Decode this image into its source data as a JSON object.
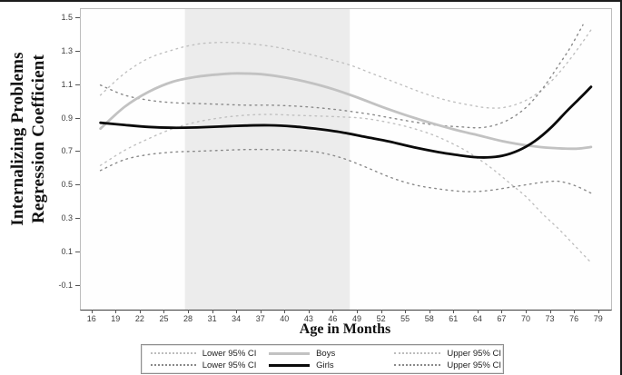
{
  "figure": {
    "y_axis_title_line1": "Internalizing Problems",
    "y_axis_title_line2": "Regression Coefficient",
    "x_axis_title": "Age in Months"
  },
  "chart_data": {
    "type": "line",
    "title": "",
    "xlabel": "Age in Months",
    "ylabel": "Internalizing Problems Regression Coefficient",
    "xlim": [
      14.56,
      80.5
    ],
    "ylim": [
      -0.241,
      1.554
    ],
    "grid": false,
    "x_tick_values": [
      16,
      19,
      22,
      25,
      28,
      31,
      34,
      37,
      40,
      43,
      46,
      49,
      52,
      55,
      58,
      61,
      64,
      67,
      70,
      73,
      76,
      79
    ],
    "x_tick_labels": [
      "16",
      "19",
      "22",
      "25",
      "28",
      "31",
      "34",
      "37",
      "40",
      "43",
      "46",
      "49",
      "52",
      "55",
      "58",
      "61",
      "64",
      "67",
      "70",
      "73",
      "76",
      "79"
    ],
    "y_tick_values": [
      1.5,
      1.3,
      1.1,
      0.9,
      0.7,
      0.5,
      0.3,
      0.1,
      -0.1
    ],
    "y_tick_labels": [
      "1.5",
      "1.3",
      "1.1",
      "0.9",
      "0.7",
      "0.5",
      "0.3",
      "0.1",
      "-0.1"
    ],
    "shaded_region": {
      "x_start": 27.5,
      "x_end": 48.0,
      "color": "#ececec"
    },
    "legend_position": "bottom",
    "series": [
      {
        "name": "boys_lower_ci",
        "label": "Lower 95% CI",
        "group": "Boys",
        "color": "#c0c0c0",
        "style": "dotted",
        "width": 1.4,
        "points": [
          [
            17,
            0.62
          ],
          [
            20,
            0.71
          ],
          [
            23,
            0.78
          ],
          [
            26,
            0.84
          ],
          [
            29,
            0.88
          ],
          [
            32,
            0.905
          ],
          [
            35,
            0.92
          ],
          [
            38,
            0.925
          ],
          [
            41,
            0.92
          ],
          [
            44,
            0.915
          ],
          [
            47,
            0.91
          ],
          [
            50,
            0.9
          ],
          [
            53,
            0.875
          ],
          [
            56,
            0.84
          ],
          [
            59,
            0.79
          ],
          [
            62,
            0.72
          ],
          [
            64,
            0.66
          ],
          [
            66,
            0.59
          ],
          [
            68,
            0.51
          ],
          [
            70,
            0.43
          ],
          [
            72,
            0.33
          ],
          [
            74,
            0.24
          ],
          [
            76,
            0.14
          ],
          [
            78,
            0.04
          ]
        ]
      },
      {
        "name": "girls_lower_ci",
        "label": "Lower 95% CI",
        "group": "Girls",
        "color": "#8a8a8a",
        "style": "dotted",
        "width": 1.4,
        "points": [
          [
            17,
            0.59
          ],
          [
            20,
            0.655
          ],
          [
            23,
            0.685
          ],
          [
            26,
            0.7
          ],
          [
            29,
            0.705
          ],
          [
            32,
            0.71
          ],
          [
            35,
            0.715
          ],
          [
            38,
            0.715
          ],
          [
            41,
            0.71
          ],
          [
            44,
            0.7
          ],
          [
            47,
            0.665
          ],
          [
            50,
            0.61
          ],
          [
            53,
            0.55
          ],
          [
            56,
            0.505
          ],
          [
            59,
            0.48
          ],
          [
            62,
            0.465
          ],
          [
            64,
            0.465
          ],
          [
            66,
            0.475
          ],
          [
            68,
            0.49
          ],
          [
            70,
            0.505
          ],
          [
            72,
            0.52
          ],
          [
            74,
            0.525
          ],
          [
            76,
            0.5
          ],
          [
            78,
            0.455
          ]
        ]
      },
      {
        "name": "boys_upper_ci",
        "label": "Upper 95% CI",
        "group": "Boys",
        "color": "#c0c0c0",
        "style": "dotted",
        "width": 1.4,
        "points": [
          [
            17,
            1.04
          ],
          [
            20,
            1.17
          ],
          [
            23,
            1.26
          ],
          [
            26,
            1.31
          ],
          [
            28,
            1.335
          ],
          [
            30,
            1.35
          ],
          [
            33,
            1.355
          ],
          [
            36,
            1.345
          ],
          [
            39,
            1.325
          ],
          [
            42,
            1.295
          ],
          [
            45,
            1.26
          ],
          [
            48,
            1.22
          ],
          [
            51,
            1.165
          ],
          [
            54,
            1.11
          ],
          [
            57,
            1.055
          ],
          [
            60,
            1.01
          ],
          [
            63,
            0.98
          ],
          [
            65,
            0.965
          ],
          [
            67,
            0.965
          ],
          [
            69,
            0.99
          ],
          [
            71,
            1.04
          ],
          [
            73,
            1.12
          ],
          [
            75,
            1.23
          ],
          [
            77,
            1.36
          ],
          [
            78,
            1.43
          ]
        ]
      },
      {
        "name": "girls_upper_ci",
        "label": "Upper 95% CI",
        "group": "Girls",
        "color": "#8a8a8a",
        "style": "dotted",
        "width": 1.4,
        "points": [
          [
            17,
            1.1
          ],
          [
            20,
            1.04
          ],
          [
            23,
            1.01
          ],
          [
            26,
            0.995
          ],
          [
            29,
            0.99
          ],
          [
            32,
            0.985
          ],
          [
            35,
            0.98
          ],
          [
            38,
            0.98
          ],
          [
            41,
            0.975
          ],
          [
            44,
            0.965
          ],
          [
            47,
            0.95
          ],
          [
            50,
            0.93
          ],
          [
            53,
            0.905
          ],
          [
            56,
            0.88
          ],
          [
            59,
            0.86
          ],
          [
            62,
            0.85
          ],
          [
            64,
            0.845
          ],
          [
            66,
            0.86
          ],
          [
            68,
            0.9
          ],
          [
            70,
            0.97
          ],
          [
            72,
            1.08
          ],
          [
            74,
            1.22
          ],
          [
            75.5,
            1.33
          ],
          [
            77,
            1.46
          ]
        ]
      },
      {
        "name": "boys",
        "label": "Boys",
        "group": "Boys",
        "color": "#c2c2c2",
        "style": "solid",
        "width": 2.8,
        "points": [
          [
            17,
            0.84
          ],
          [
            20,
            0.97
          ],
          [
            23,
            1.06
          ],
          [
            26,
            1.12
          ],
          [
            29,
            1.15
          ],
          [
            32,
            1.165
          ],
          [
            34,
            1.17
          ],
          [
            37,
            1.165
          ],
          [
            40,
            1.145
          ],
          [
            43,
            1.115
          ],
          [
            46,
            1.075
          ],
          [
            49,
            1.025
          ],
          [
            52,
            0.97
          ],
          [
            55,
            0.92
          ],
          [
            58,
            0.875
          ],
          [
            61,
            0.835
          ],
          [
            64,
            0.8
          ],
          [
            67,
            0.765
          ],
          [
            70,
            0.74
          ],
          [
            73,
            0.725
          ],
          [
            76,
            0.72
          ],
          [
            78,
            0.73
          ]
        ]
      },
      {
        "name": "girls",
        "label": "Girls",
        "group": "Girls",
        "color": "#0a0a0a",
        "style": "solid",
        "width": 2.8,
        "points": [
          [
            17,
            0.875
          ],
          [
            20,
            0.862
          ],
          [
            23,
            0.85
          ],
          [
            26,
            0.845
          ],
          [
            29,
            0.847
          ],
          [
            32,
            0.853
          ],
          [
            35,
            0.858
          ],
          [
            38,
            0.86
          ],
          [
            41,
            0.853
          ],
          [
            44,
            0.838
          ],
          [
            47,
            0.818
          ],
          [
            50,
            0.79
          ],
          [
            53,
            0.762
          ],
          [
            56,
            0.728
          ],
          [
            59,
            0.7
          ],
          [
            61,
            0.685
          ],
          [
            63,
            0.672
          ],
          [
            65,
            0.668
          ],
          [
            67,
            0.678
          ],
          [
            69,
            0.71
          ],
          [
            71,
            0.765
          ],
          [
            73,
            0.845
          ],
          [
            75,
            0.945
          ],
          [
            77,
            1.04
          ],
          [
            78,
            1.09
          ]
        ]
      }
    ]
  },
  "legend": {
    "rows": [
      {
        "entries": [
          {
            "style": "dotted",
            "color": "#bdbdbd",
            "label": "Lower 95% CI"
          },
          {
            "style": "solid",
            "color": "#c2c2c2",
            "label": "Boys"
          },
          {
            "style": "dotted",
            "color": "#bdbdbd",
            "label": "Upper 95% CI"
          }
        ]
      },
      {
        "entries": [
          {
            "style": "dotted",
            "color": "#8a8a8a",
            "label": "Lower 95% CI"
          },
          {
            "style": "solid",
            "color": "#0a0a0a",
            "label": "Girls"
          },
          {
            "style": "dotted",
            "color": "#8a8a8a",
            "label": "Upper 95% CI"
          }
        ]
      }
    ]
  },
  "colors": {
    "boys_line": "#c2c2c2",
    "girls_line": "#0a0a0a",
    "boys_ci": "#c0c0c0",
    "girls_ci": "#8a8a8a",
    "shaded_band": "#ececec",
    "axis": "#3a3a3a"
  }
}
